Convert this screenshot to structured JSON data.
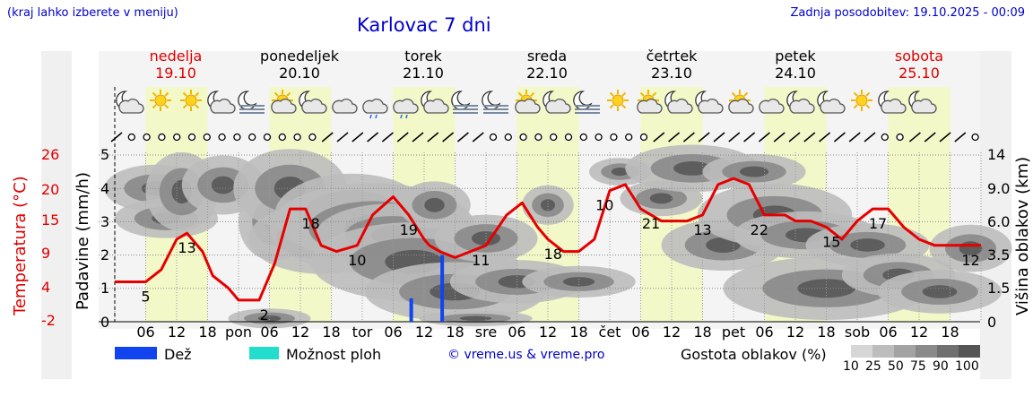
{
  "header": {
    "hint": "(kraj lahko izberete v meniju)",
    "title": "Karlovac 7 dni",
    "updated": "Zadnja posodobitev: 19.10.2025 - 00:09"
  },
  "days": [
    {
      "name": "nedelja",
      "date": "19.10",
      "red": true
    },
    {
      "name": "ponedeljek",
      "date": "20.10",
      "red": false
    },
    {
      "name": "torek",
      "date": "21.10",
      "red": false
    },
    {
      "name": "sreda",
      "date": "22.10",
      "red": false
    },
    {
      "name": "četrtek",
      "date": "23.10",
      "red": false
    },
    {
      "name": "petek",
      "date": "24.10",
      "red": false
    },
    {
      "name": "sobota",
      "date": "25.10",
      "red": true
    }
  ],
  "axes": {
    "temp_label": "Temperatura (°C)",
    "precip_label": "Padavine (mm/h)",
    "cloud_label": "Višina oblakov (km)",
    "temp_ticks": [
      "26",
      "20",
      "15",
      "9",
      "4",
      "-2"
    ],
    "precip_ticks": [
      "5",
      "4",
      "3",
      "2",
      "1",
      "0"
    ],
    "cloud_ticks": [
      "14",
      "9.0",
      "6.0",
      "3.5",
      "1.5",
      "0"
    ],
    "x_ticks": [
      "06",
      "12",
      "18",
      "pon",
      "06",
      "12",
      "18",
      "tor",
      "06",
      "12",
      "18",
      "sre",
      "06",
      "12",
      "18",
      "čet",
      "06",
      "12",
      "18",
      "pet",
      "06",
      "12",
      "18",
      "sob",
      "06",
      "12",
      "18"
    ]
  },
  "legend": {
    "rain": "Dež",
    "storm": "Možnost ploh",
    "credit": "© vreme.us & vreme.pro",
    "cloud_density": "Gostota oblakov (%)",
    "cloud_levels": [
      "10",
      "25",
      "50",
      "75",
      "90",
      "100"
    ],
    "cloud_colors": [
      "#d6d6d6",
      "#bdbdbd",
      "#a3a3a3",
      "#8a8a8a",
      "#707070",
      "#555555"
    ],
    "rain_color": "#1144ee",
    "storm_color": "#22ddcc"
  },
  "chart_data": {
    "type": "line",
    "x_unit": "hours from 19.10 00:00",
    "temperature": {
      "name": "Temperatura",
      "color": "#e60000",
      "x": [
        0,
        6,
        9,
        12,
        14,
        17,
        19,
        22,
        24,
        28,
        31,
        34,
        37,
        40,
        43,
        47,
        50,
        54,
        57,
        60,
        61,
        63,
        66,
        69,
        72,
        76,
        79,
        82,
        84,
        87,
        90,
        93,
        96,
        99,
        102,
        106,
        108,
        111,
        114,
        117,
        120,
        123,
        126,
        130,
        132,
        135,
        138,
        141,
        144,
        147,
        150,
        153,
        156,
        159,
        162,
        165,
        168
      ],
      "y": [
        5,
        5,
        7,
        12,
        13,
        10,
        6,
        4,
        2,
        2,
        8,
        17,
        17,
        11,
        10,
        11,
        16,
        19,
        16,
        12,
        11,
        10,
        9,
        10,
        11,
        16,
        18,
        14,
        12,
        10,
        10,
        12,
        20,
        21,
        17,
        15,
        15,
        15,
        16,
        21,
        22,
        21,
        16,
        16,
        15,
        15,
        14,
        12,
        15,
        17,
        17,
        14,
        12,
        11,
        11,
        11,
        11
      ],
      "labels": [
        {
          "x": 6,
          "value": "5"
        },
        {
          "x": 14,
          "value": "13"
        },
        {
          "x": 29,
          "value": "2"
        },
        {
          "x": 38,
          "value": "18"
        },
        {
          "x": 47,
          "value": "10"
        },
        {
          "x": 57,
          "value": "19"
        },
        {
          "x": 71,
          "value": "11"
        },
        {
          "x": 85,
          "value": "18"
        },
        {
          "x": 95,
          "value": "10"
        },
        {
          "x": 104,
          "value": "21"
        },
        {
          "x": 114,
          "value": "13"
        },
        {
          "x": 125,
          "value": "22"
        },
        {
          "x": 139,
          "value": "15"
        },
        {
          "x": 148,
          "value": "17"
        },
        {
          "x": 166,
          "value": "12"
        }
      ]
    },
    "precipitation": {
      "name": "Dež",
      "x": [
        57.5,
        63.5
      ],
      "y": [
        0.7,
        2.0
      ]
    },
    "weather_icons": [
      "cloud-moon",
      "sun",
      "sun",
      "cloud-moon",
      "fog-moon",
      "cloud-sun",
      "cloud-moon",
      "cloud",
      "cloud-rain",
      "cloud-rain",
      "cloud-moon",
      "fog-moon",
      "fog-moon",
      "cloud-sun",
      "cloud-moon",
      "fog-moon",
      "sun",
      "cloud-sun",
      "cloud-moon",
      "cloud-moon",
      "cloud-sun",
      "cloud",
      "cloud-moon",
      "cloud-moon",
      "sun",
      "cloud-moon",
      "cloud-moon"
    ]
  }
}
